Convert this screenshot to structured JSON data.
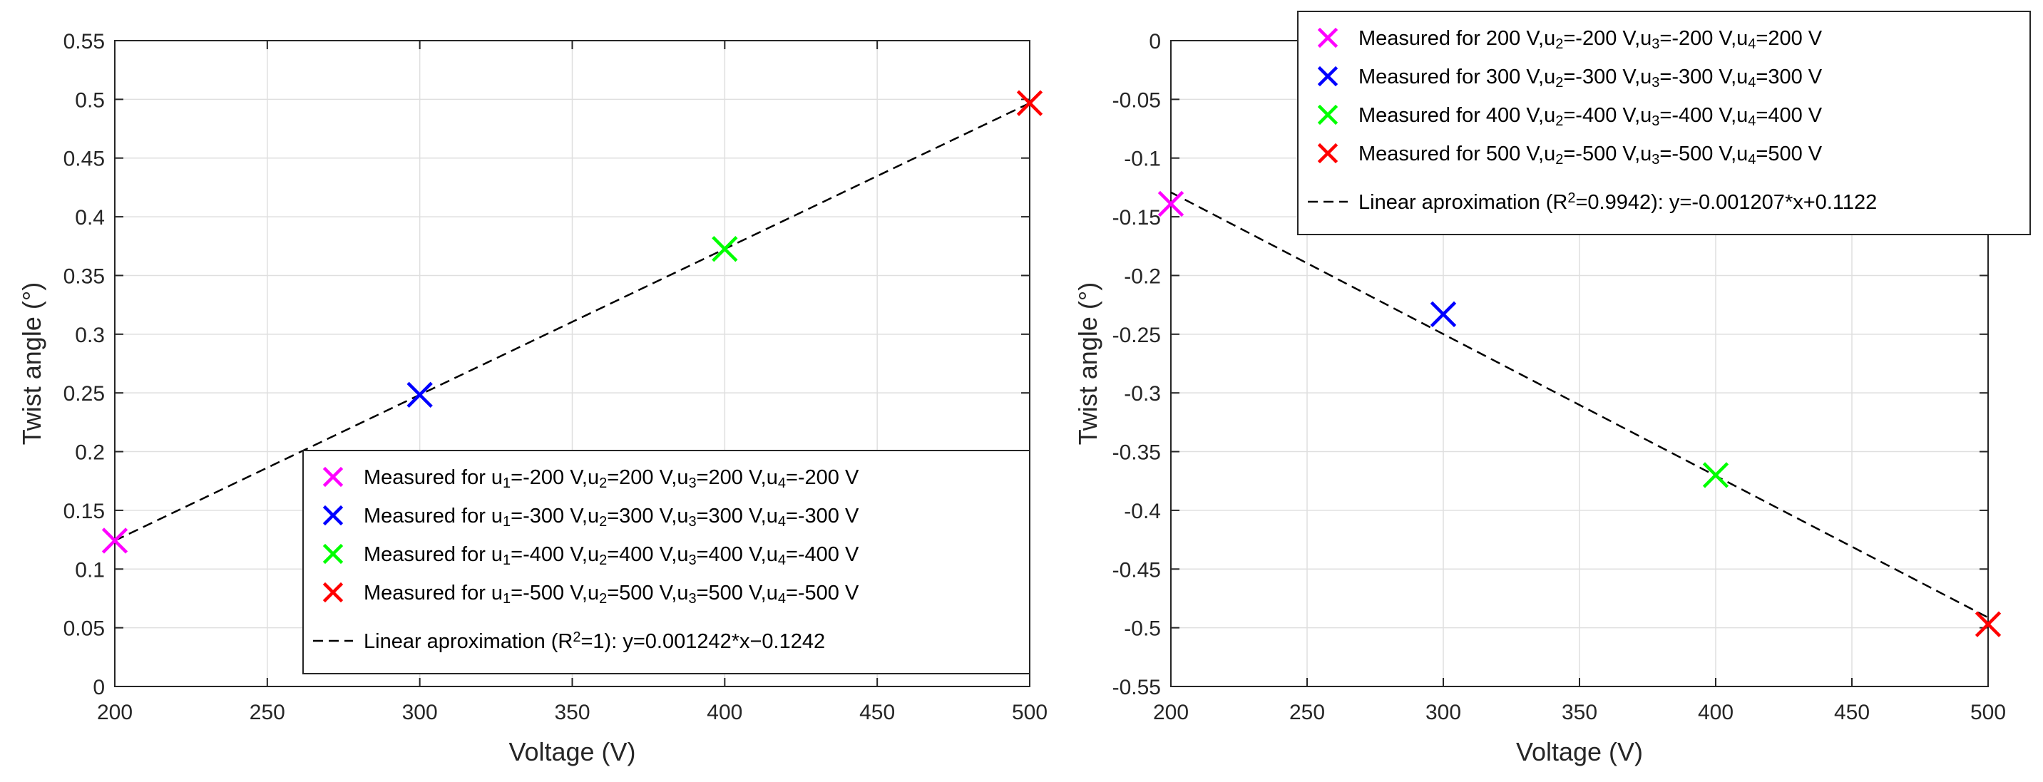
{
  "chart_data": [
    {
      "type": "scatter",
      "xlabel": "Voltage (V)",
      "ylabel": "Twist angle (°)",
      "xlim": [
        200,
        500
      ],
      "ylim": [
        0,
        0.55
      ],
      "xticks": [
        200,
        250,
        300,
        350,
        400,
        450,
        500
      ],
      "xtick_labels": [
        "200",
        "250",
        "300",
        "350",
        "400",
        "450",
        "500"
      ],
      "yticks": [
        0,
        0.05,
        0.1,
        0.15,
        0.2,
        0.25,
        0.3,
        0.35,
        0.4,
        0.45,
        0.5,
        0.55
      ],
      "ytick_labels": [
        "0",
        "0.05",
        "0.1",
        "0.15",
        "0.2",
        "0.25",
        "0.3",
        "0.35",
        "0.4",
        "0.45",
        "0.5",
        "0.55"
      ],
      "grid": true,
      "legend_position": "bottom-right",
      "series": [
        {
          "name": "Measured for u1=-200 V,u2=200 V,u3=200 V,u4=-200 V",
          "legend": [
            [
              "Measured for u",
              ""
            ],
            [
              "1",
              "sub"
            ],
            [
              "=-200 V,u",
              ""
            ],
            [
              "2",
              "sub"
            ],
            [
              "=200 V,u",
              ""
            ],
            [
              "3",
              "sub"
            ],
            [
              "=200 V,u",
              ""
            ],
            [
              "4",
              "sub"
            ],
            [
              "=-200 V",
              ""
            ]
          ],
          "marker": "x",
          "color": "#ff00ff",
          "x": [
            200
          ],
          "y": [
            0.1242
          ]
        },
        {
          "name": "Measured for u1=-300 V,u2=300 V,u3=300 V,u4=-300 V",
          "legend": [
            [
              "Measured for u",
              ""
            ],
            [
              "1",
              "sub"
            ],
            [
              "=-300 V,u",
              ""
            ],
            [
              "2",
              "sub"
            ],
            [
              "=300 V,u",
              ""
            ],
            [
              "3",
              "sub"
            ],
            [
              "=300 V,u",
              ""
            ],
            [
              "4",
              "sub"
            ],
            [
              "=-300 V",
              ""
            ]
          ],
          "marker": "x",
          "color": "#0000ff",
          "x": [
            300
          ],
          "y": [
            0.2484
          ]
        },
        {
          "name": "Measured for u1=-400 V,u2=400 V,u3=400 V,u4=-400 V",
          "legend": [
            [
              "Measured for u",
              ""
            ],
            [
              "1",
              "sub"
            ],
            [
              "=-400 V,u",
              ""
            ],
            [
              "2",
              "sub"
            ],
            [
              "=400 V,u",
              ""
            ],
            [
              "3",
              "sub"
            ],
            [
              "=400 V,u",
              ""
            ],
            [
              "4",
              "sub"
            ],
            [
              "=-400 V",
              ""
            ]
          ],
          "marker": "x",
          "color": "#00ff00",
          "x": [
            400
          ],
          "y": [
            0.3726
          ]
        },
        {
          "name": "Measured for u1=-500 V,u2=500 V,u3=500 V,u4=-500 V",
          "legend": [
            [
              "Measured for u",
              ""
            ],
            [
              "1",
              "sub"
            ],
            [
              "=-500 V,u",
              ""
            ],
            [
              "2",
              "sub"
            ],
            [
              "=500 V,u",
              ""
            ],
            [
              "3",
              "sub"
            ],
            [
              "=500 V,u",
              ""
            ],
            [
              "4",
              "sub"
            ],
            [
              "=-500 V",
              ""
            ]
          ],
          "marker": "x",
          "color": "#ff0000",
          "x": [
            500
          ],
          "y": [
            0.4968
          ]
        },
        {
          "name": "Linear aproximation (R2=1): y=0.001242*x-0.1242",
          "legend": [
            [
              "Linear aproximation (R",
              ""
            ],
            [
              "2",
              "sup"
            ],
            [
              "=1): y=0.001242*x−0.1242",
              ""
            ]
          ],
          "marker": "line",
          "line_style": "dashed",
          "color": "#000000",
          "x": [
            200,
            500
          ],
          "y": [
            0.1242,
            0.4968
          ]
        }
      ]
    },
    {
      "type": "scatter",
      "xlabel": "Voltage (V)",
      "ylabel": "Twist angle (°)",
      "xlim": [
        200,
        500
      ],
      "ylim": [
        -0.55,
        0
      ],
      "xticks": [
        200,
        250,
        300,
        350,
        400,
        450,
        500
      ],
      "xtick_labels": [
        "200",
        "250",
        "300",
        "350",
        "400",
        "450",
        "500"
      ],
      "yticks": [
        0,
        -0.05,
        -0.1,
        -0.15,
        -0.2,
        -0.25,
        -0.3,
        -0.35,
        -0.4,
        -0.45,
        -0.5,
        -0.55
      ],
      "ytick_labels": [
        "0",
        "-0.05",
        "-0.1",
        "-0.15",
        "-0.2",
        "-0.25",
        "-0.3",
        "-0.35",
        "-0.4",
        "-0.45",
        "-0.5",
        "-0.55"
      ],
      "grid": true,
      "legend_position": "top-right",
      "series": [
        {
          "name": "Measured for 200 V,u2=-200 V,u3=-200 V,u4=200 V",
          "legend": [
            [
              "Measured for 200 V,u",
              ""
            ],
            [
              "2",
              "sub"
            ],
            [
              "=-200 V,u",
              ""
            ],
            [
              "3",
              "sub"
            ],
            [
              "=-200 V,u",
              ""
            ],
            [
              "4",
              "sub"
            ],
            [
              "=200 V",
              ""
            ]
          ],
          "marker": "x",
          "color": "#ff00ff",
          "x": [
            200
          ],
          "y": [
            -0.139
          ]
        },
        {
          "name": "Measured for 300 V,u2=-300 V,u3=-300 V,u4=300 V",
          "legend": [
            [
              "Measured for 300 V,u",
              ""
            ],
            [
              "2",
              "sub"
            ],
            [
              "=-300 V,u",
              ""
            ],
            [
              "3",
              "sub"
            ],
            [
              "=-300 V,u",
              ""
            ],
            [
              "4",
              "sub"
            ],
            [
              "=300 V",
              ""
            ]
          ],
          "marker": "x",
          "color": "#0000ff",
          "x": [
            300
          ],
          "y": [
            -0.233
          ]
        },
        {
          "name": "Measured for 400 V,u2=-400 V,u3=-400 V,u4=400 V",
          "legend": [
            [
              "Measured for 400 V,u",
              ""
            ],
            [
              "2",
              "sub"
            ],
            [
              "=-400 V,u",
              ""
            ],
            [
              "3",
              "sub"
            ],
            [
              "=-400 V,u",
              ""
            ],
            [
              "4",
              "sub"
            ],
            [
              "=400 V",
              ""
            ]
          ],
          "marker": "x",
          "color": "#00ff00",
          "x": [
            400
          ],
          "y": [
            -0.37
          ]
        },
        {
          "name": "Measured for 500 V,u2=-500 V,u3=-500 V,u4=500 V",
          "legend": [
            [
              "Measured for 500 V,u",
              ""
            ],
            [
              "2",
              "sub"
            ],
            [
              "=-500 V,u",
              ""
            ],
            [
              "3",
              "sub"
            ],
            [
              "=-500 V,u",
              ""
            ],
            [
              "4",
              "sub"
            ],
            [
              "=500 V",
              ""
            ]
          ],
          "marker": "x",
          "color": "#ff0000",
          "x": [
            500
          ],
          "y": [
            -0.497
          ]
        },
        {
          "name": "Linear aproximation (R2=0.9942): y=-0.001207*x+0.1122",
          "legend": [
            [
              "Linear aproximation (R",
              ""
            ],
            [
              "2",
              "sup"
            ],
            [
              "=0.9942): y=-0.001207*x+0.1122",
              ""
            ]
          ],
          "marker": "line",
          "line_style": "dashed",
          "color": "#000000",
          "x": [
            200,
            500
          ],
          "y": [
            -0.1292,
            -0.4913
          ]
        }
      ]
    }
  ]
}
